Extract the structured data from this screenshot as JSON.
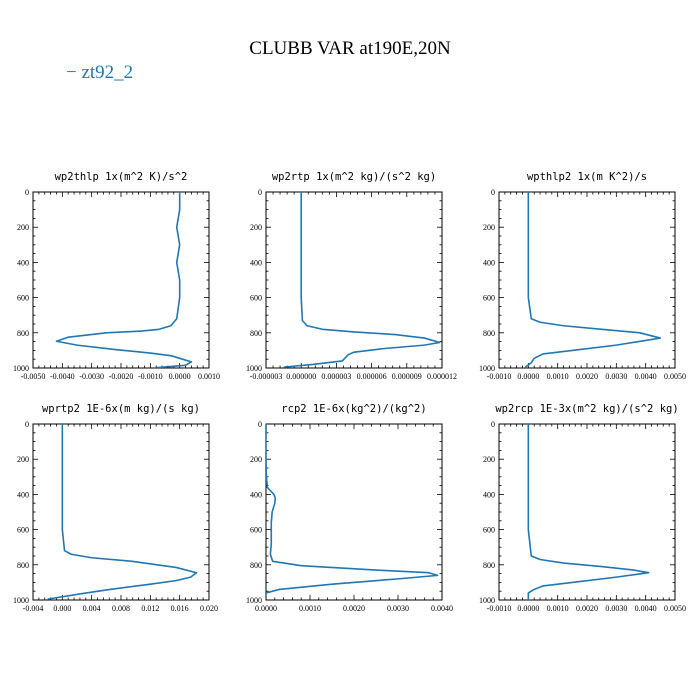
{
  "figure": {
    "title": "CLUBB VAR at190E,20N",
    "legend": [
      {
        "label": "zt92_2",
        "color": "#1f77b4"
      }
    ],
    "line_color": "#1f77b4"
  },
  "chart_data": [
    {
      "type": "line",
      "title": "wp2thlp  1x(m^2 K)/s^2",
      "xlim": [
        -0.005,
        0.001
      ],
      "ylim": [
        1000,
        0
      ],
      "xticks": [
        -0.005,
        -0.004,
        -0.003,
        -0.002,
        -0.001,
        0.0,
        0.001
      ],
      "xtick_labels": [
        "-0.0050",
        "-0.0040",
        "-0.0030",
        "-0.0020",
        "-0.0010",
        "0.0000",
        "0.0010"
      ],
      "yticks": [
        0,
        200,
        400,
        600,
        800,
        1000
      ],
      "ytick_labels": [
        "0",
        "200",
        "400",
        "600",
        "800",
        "1000"
      ],
      "series": [
        {
          "name": "zt92_2",
          "x": [
            0.0,
            0.0,
            -0.0001,
            0.0,
            -0.0001,
            0.0,
            0.0,
            -0.0001,
            -0.0003,
            -0.0007,
            -0.0013,
            -0.0025,
            -0.0038,
            -0.0042,
            -0.0035,
            -0.0022,
            -0.001,
            -0.0003,
            0.0,
            0.0004,
            0.0002,
            -0.0008
          ],
          "y": [
            0,
            100,
            200,
            300,
            400,
            500,
            600,
            720,
            760,
            780,
            790,
            800,
            825,
            848,
            870,
            895,
            915,
            930,
            945,
            965,
            985,
            998
          ]
        }
      ]
    },
    {
      "type": "line",
      "title": "wp2rtp  1x(m^2 kg)/(s^2 kg)",
      "xlim": [
        -3e-06,
        1.2e-05
      ],
      "ylim": [
        1000,
        0
      ],
      "xticks": [
        -3e-06,
        0.0,
        3e-06,
        6e-06,
        9e-06,
        1.2e-05
      ],
      "xtick_labels": [
        "-0.000003",
        "0.000000",
        "0.000003",
        "0.000006",
        "0.000009",
        "0.000012"
      ],
      "yticks": [
        0,
        200,
        400,
        600,
        800,
        1000
      ],
      "ytick_labels": [
        "0",
        "200",
        "400",
        "600",
        "800",
        "1000"
      ],
      "series": [
        {
          "name": "zt92_2",
          "x": [
            0.0,
            0.0,
            0.0,
            0.0,
            0.0,
            0.0,
            0.0,
            1e-07,
            5e-07,
            1.8e-06,
            4.5e-06,
            8e-06,
            1.05e-05,
            1.18e-05,
            1.05e-05,
            7e-06,
            4.5e-06,
            4e-06,
            3.5e-06,
            1e-06,
            -1.5e-06
          ],
          "y": [
            0,
            100,
            200,
            300,
            400,
            500,
            600,
            730,
            760,
            780,
            795,
            810,
            830,
            855,
            870,
            890,
            910,
            925,
            960,
            980,
            995
          ]
        }
      ]
    },
    {
      "type": "line",
      "title": "wpthlp2  1x(m K^2)/s",
      "xlim": [
        -0.001,
        0.005
      ],
      "ylim": [
        1000,
        0
      ],
      "xticks": [
        -0.001,
        0.0,
        0.001,
        0.002,
        0.003,
        0.004,
        0.005
      ],
      "xtick_labels": [
        "-0.0010",
        "0.0000",
        "0.0010",
        "0.0020",
        "0.0030",
        "0.0040",
        "0.0050"
      ],
      "yticks": [
        0,
        200,
        400,
        600,
        800,
        1000
      ],
      "ytick_labels": [
        "0",
        "200",
        "400",
        "600",
        "800",
        "1000"
      ],
      "series": [
        {
          "name": "zt92_2",
          "x": [
            0.0,
            0.0,
            0.0,
            0.0,
            0.0,
            0.0,
            0.0,
            0.0001,
            0.0004,
            0.0012,
            0.0025,
            0.0038,
            0.0045,
            0.003,
            0.0015,
            0.0005,
            0.0002,
            0.0001,
            -0.0001
          ],
          "y": [
            0,
            100,
            200,
            300,
            400,
            500,
            600,
            720,
            740,
            760,
            780,
            800,
            830,
            870,
            900,
            920,
            945,
            970,
            995
          ]
        }
      ]
    },
    {
      "type": "line",
      "title": "wprtp2  1E-6x(m kg)/(s kg)",
      "xlim": [
        -0.004,
        0.02
      ],
      "ylim": [
        1000,
        0
      ],
      "xticks": [
        -0.004,
        0.0,
        0.004,
        0.008,
        0.012,
        0.016,
        0.02
      ],
      "xtick_labels": [
        "-0.004",
        "0.000",
        "0.004",
        "0.008",
        "0.012",
        "0.016",
        "0.020"
      ],
      "yticks": [
        0,
        200,
        400,
        600,
        800,
        1000
      ],
      "ytick_labels": [
        "0",
        "200",
        "400",
        "600",
        "800",
        "1000"
      ],
      "series": [
        {
          "name": "zt92_2",
          "x": [
            0.0,
            0.0,
            0.0,
            0.0,
            0.0,
            0.0,
            0.0,
            0.0003,
            0.0012,
            0.004,
            0.0095,
            0.0155,
            0.0183,
            0.0175,
            0.0155,
            0.012,
            0.0065,
            0.0025,
            -0.002
          ],
          "y": [
            0,
            100,
            200,
            300,
            400,
            500,
            600,
            720,
            740,
            760,
            780,
            815,
            845,
            870,
            890,
            910,
            940,
            965,
            995
          ]
        }
      ]
    },
    {
      "type": "line",
      "title": "rcp2  1E-6x(kg^2)/(kg^2)",
      "xlim": [
        0.0,
        0.004
      ],
      "ylim": [
        1000,
        0
      ],
      "xticks": [
        0.0,
        0.001,
        0.002,
        0.003,
        0.004
      ],
      "xtick_labels": [
        "0.0000",
        "0.0010",
        "0.0020",
        "0.0030",
        "0.0040"
      ],
      "yticks": [
        0,
        200,
        400,
        600,
        800,
        1000
      ],
      "ytick_labels": [
        "0",
        "200",
        "400",
        "600",
        "800",
        "1000"
      ],
      "series": [
        {
          "name": "zt92_2",
          "x": [
            0.0,
            0.0,
            0.0,
            1e-05,
            3e-05,
            0.00018,
            0.00021,
            0.0002,
            0.00014,
            0.00012,
            0.00012,
            0.00012,
            0.0001,
            0.00015,
            0.0008,
            0.0025,
            0.0037,
            0.0039,
            0.003,
            0.0015,
            0.0003,
            0.0
          ],
          "y": [
            0,
            100,
            200,
            300,
            360,
            400,
            420,
            450,
            500,
            560,
            620,
            680,
            740,
            780,
            805,
            830,
            845,
            860,
            880,
            910,
            940,
            960
          ]
        }
      ]
    },
    {
      "type": "line",
      "title": "wp2rcp  1E-3x(m^2 kg)/(s^2 kg)",
      "xlim": [
        -0.001,
        0.005
      ],
      "ylim": [
        1000,
        0
      ],
      "xticks": [
        -0.001,
        0.0,
        0.001,
        0.002,
        0.003,
        0.004,
        0.005
      ],
      "xtick_labels": [
        "-0.0010",
        "0.0000",
        "0.0010",
        "0.0020",
        "0.0030",
        "0.0040",
        "0.0050"
      ],
      "yticks": [
        0,
        200,
        400,
        600,
        800,
        1000
      ],
      "ytick_labels": [
        "0",
        "200",
        "400",
        "600",
        "800",
        "1000"
      ],
      "series": [
        {
          "name": "zt92_2",
          "x": [
            0.0,
            0.0,
            0.0,
            0.0,
            0.0,
            0.0,
            0.0,
            0.0001,
            0.0004,
            0.0012,
            0.0025,
            0.0036,
            0.0041,
            0.003,
            0.0015,
            0.0005,
            0.0002,
            0.0,
            0.0
          ],
          "y": [
            0,
            100,
            200,
            300,
            400,
            500,
            600,
            750,
            770,
            790,
            810,
            830,
            845,
            870,
            900,
            920,
            940,
            960,
            1000
          ]
        }
      ]
    }
  ]
}
